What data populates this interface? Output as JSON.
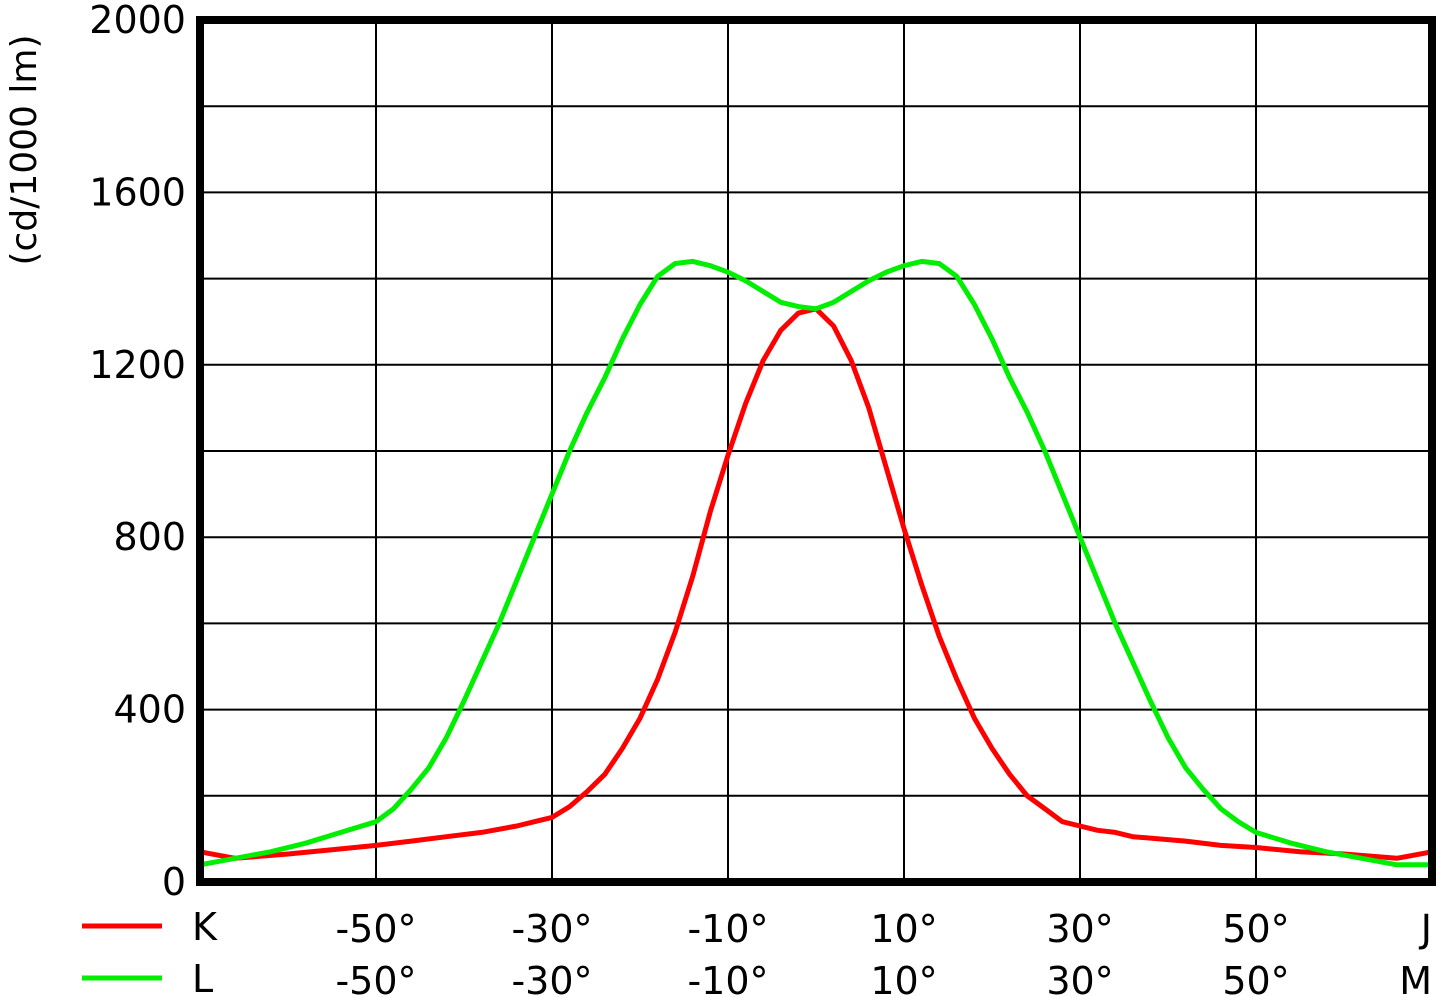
{
  "chart_data": {
    "type": "line",
    "ylabel": "(cd/1000 lm)",
    "xlim": [
      -70,
      70
    ],
    "ylim": [
      0,
      2000
    ],
    "grid": true,
    "legend_position": "bottom-left",
    "x_ticks_row1": [
      "-50°",
      "-30°",
      "-10°",
      "10°",
      "30°",
      "50°"
    ],
    "x_ticks_row2": [
      "-50°",
      "-30°",
      "-10°",
      "10°",
      "30°",
      "50°"
    ],
    "x_end_label_row1": "J",
    "x_end_label_row2": "M",
    "y_ticks": [
      "0",
      "400",
      "800",
      "1200",
      "1600",
      "2000"
    ],
    "series": [
      {
        "name": "K",
        "color": "#ff0000",
        "x": [
          -70,
          -66,
          -60,
          -55,
          -50,
          -46,
          -42,
          -38,
          -34,
          -32,
          -30,
          -28,
          -26,
          -24,
          -22,
          -20,
          -18,
          -16,
          -14,
          -12,
          -10,
          -8,
          -6,
          -4,
          -2,
          0,
          2,
          4,
          6,
          8,
          10,
          12,
          14,
          16,
          18,
          20,
          22,
          24,
          26,
          28,
          30,
          32,
          34,
          36,
          42,
          46,
          50,
          55,
          60,
          66,
          70
        ],
        "values": [
          70,
          55,
          65,
          75,
          85,
          95,
          105,
          115,
          130,
          140,
          150,
          175,
          210,
          250,
          310,
          380,
          470,
          580,
          710,
          860,
          990,
          1110,
          1210,
          1280,
          1320,
          1330,
          1290,
          1210,
          1100,
          960,
          820,
          690,
          570,
          470,
          380,
          310,
          250,
          200,
          170,
          140,
          130,
          120,
          115,
          105,
          95,
          85,
          80,
          70,
          65,
          55,
          70
        ]
      },
      {
        "name": "L",
        "color": "#00ee00",
        "x": [
          -70,
          -66,
          -62,
          -58,
          -54,
          -50,
          -48,
          -46,
          -44,
          -42,
          -40,
          -38,
          -36,
          -34,
          -32,
          -30,
          -28,
          -26,
          -24,
          -22,
          -20,
          -18,
          -16,
          -14,
          -12,
          -10,
          -8,
          -6,
          -4,
          -2,
          0,
          2,
          4,
          6,
          8,
          10,
          12,
          14,
          16,
          18,
          20,
          22,
          24,
          26,
          28,
          30,
          32,
          34,
          36,
          38,
          40,
          42,
          44,
          46,
          48,
          50,
          54,
          58,
          62,
          66,
          70
        ],
        "values": [
          40,
          55,
          70,
          90,
          115,
          140,
          170,
          215,
          265,
          335,
          420,
          510,
          600,
          700,
          800,
          900,
          1000,
          1090,
          1170,
          1260,
          1340,
          1405,
          1435,
          1440,
          1430,
          1415,
          1395,
          1370,
          1345,
          1335,
          1330,
          1345,
          1370,
          1395,
          1415,
          1430,
          1440,
          1435,
          1405,
          1340,
          1260,
          1170,
          1090,
          1000,
          900,
          800,
          700,
          600,
          510,
          420,
          335,
          265,
          215,
          170,
          140,
          115,
          90,
          70,
          55,
          40,
          40
        ]
      }
    ]
  }
}
